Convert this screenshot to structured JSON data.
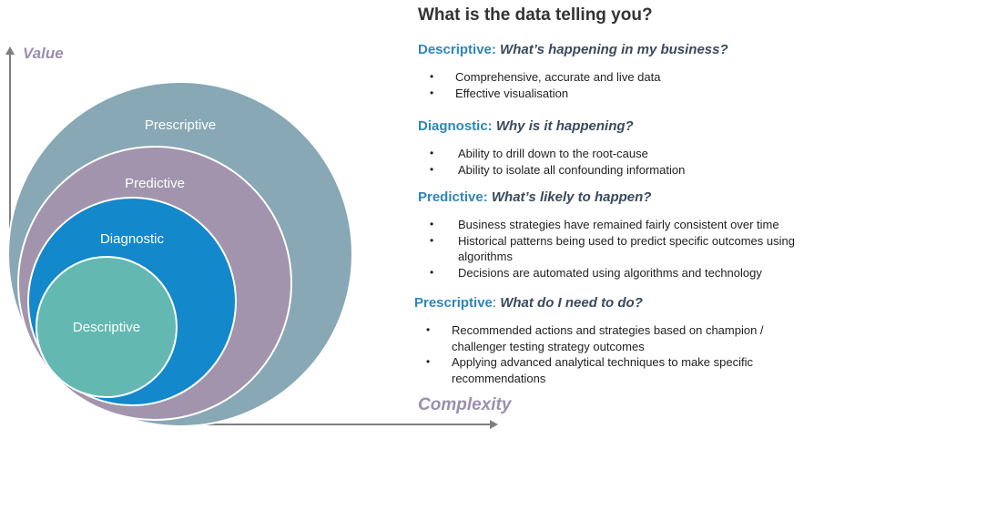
{
  "diagram": {
    "y_axis_label": "Value",
    "x_axis_label": "Complexity",
    "circles": [
      {
        "label": "Prescriptive",
        "color": "#87a8b4"
      },
      {
        "label": "Predictive",
        "color": "#a194ac"
      },
      {
        "label": "Diagnostic",
        "color": "#1388cb"
      },
      {
        "label": "Descriptive",
        "color": "#63b9b2"
      }
    ],
    "axis_color": "#7f7f7f"
  },
  "panel": {
    "title": "What is the data telling you?",
    "sections": [
      {
        "category": "Descriptive:",
        "question": "What’s happening in my business?",
        "bullets": [
          "Comprehensive, accurate and live data",
          "Effective visualisation"
        ]
      },
      {
        "category": "Diagnostic:",
        "question": "Why is it happening?",
        "bullets": [
          "Ability to drill down to the root-cause",
          "Ability to isolate all confounding information"
        ]
      },
      {
        "category": "Predictive:",
        "question": "What’s likely to happen?",
        "bullets": [
          "Business strategies have remained fairly consistent over time",
          "Historical patterns being used to predict specific outcomes using algorithms",
          "Decisions are automated using algorithms and technology"
        ]
      },
      {
        "category": "Prescriptive",
        "separator": ":",
        "question": "What do I need to do?",
        "bullets": [
          "Recommended actions and strategies based on champion / challenger testing strategy outcomes",
          "Applying advanced analytical techniques to make specific recommendations"
        ]
      }
    ]
  }
}
